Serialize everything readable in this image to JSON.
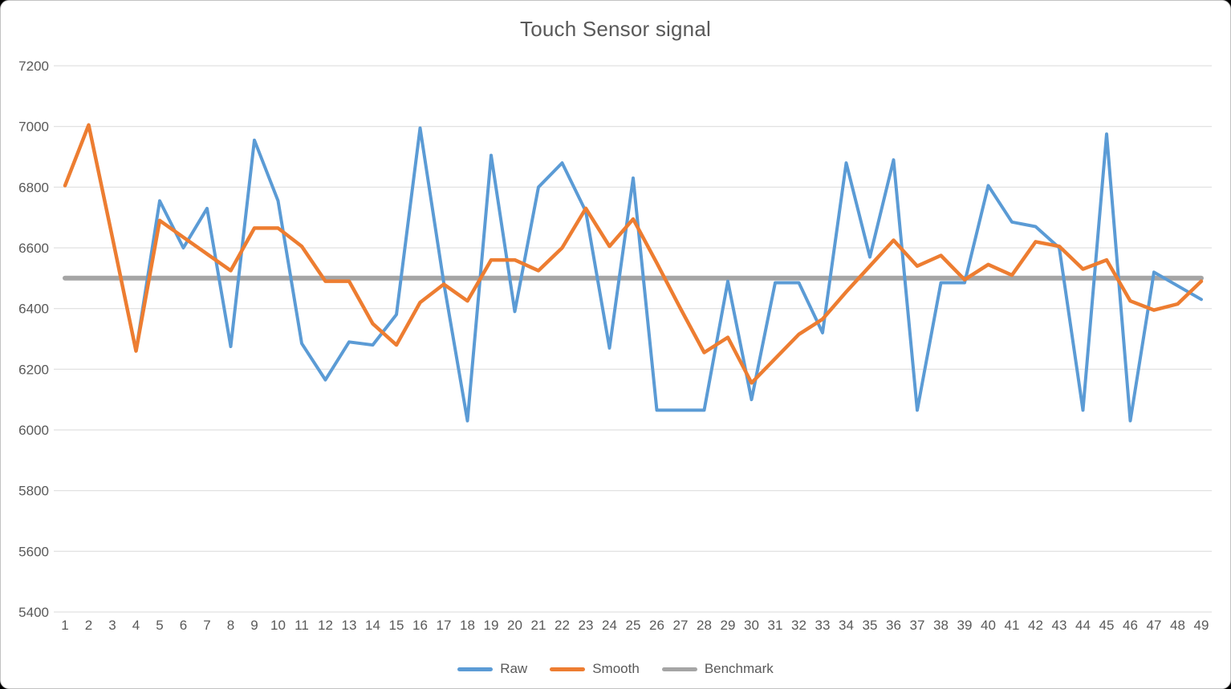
{
  "title": "Touch Sensor signal",
  "colors": {
    "raw": "#5B9BD5",
    "smooth": "#ED7D31",
    "benchmark": "#A5A5A5",
    "grid": "#D9D9D9",
    "axis_text": "#595959",
    "background": "#FFFFFF",
    "window_border": "#C2C2C2"
  },
  "legend": {
    "position": "bottom",
    "items": [
      {
        "label": "Raw"
      },
      {
        "label": "Smooth"
      },
      {
        "label": "Benchmark"
      }
    ]
  },
  "chart_data": {
    "type": "line",
    "title": "Touch Sensor signal",
    "xlabel": "",
    "ylabel": "",
    "ylim": [
      5400,
      7200
    ],
    "ytick_step": 200,
    "yticks": [
      7200,
      7000,
      6800,
      6600,
      6400,
      6200,
      6000,
      5800,
      5600,
      5400
    ],
    "grid": true,
    "legend_position": "bottom",
    "categories": [
      "1",
      "2",
      "3",
      "4",
      "5",
      "6",
      "7",
      "8",
      "9",
      "10",
      "11",
      "12",
      "13",
      "14",
      "15",
      "16",
      "17",
      "18",
      "19",
      "20",
      "21",
      "22",
      "23",
      "24",
      "25",
      "26",
      "27",
      "28",
      "29",
      "30",
      "31",
      "32",
      "33",
      "34",
      "35",
      "36",
      "37",
      "38",
      "39",
      "40",
      "41",
      "42",
      "43",
      "44",
      "45",
      "46",
      "47",
      "48",
      "49"
    ],
    "series": [
      {
        "name": "Raw",
        "color": "#5B9BD5",
        "width": 4,
        "z": 1,
        "values": [
          6805,
          7005,
          6635,
          6260,
          6755,
          6600,
          6730,
          6275,
          6955,
          6755,
          6285,
          6165,
          6290,
          6280,
          6380,
          6995,
          6485,
          6030,
          6905,
          6390,
          6800,
          6880,
          6720,
          6270,
          6830,
          6065,
          6065,
          6065,
          6490,
          6100,
          6485,
          6485,
          6320,
          6880,
          6570,
          6890,
          6065,
          6485,
          6485,
          6805,
          6685,
          6670,
          6600,
          6065,
          6975,
          6030,
          6520,
          6475,
          6430
        ]
      },
      {
        "name": "Smooth",
        "color": "#ED7D31",
        "width": 4.5,
        "z": 2,
        "values": [
          6805,
          7005,
          6635,
          6260,
          6690,
          6635,
          6580,
          6525,
          6665,
          6665,
          6605,
          6490,
          6490,
          6350,
          6280,
          6420,
          6480,
          6425,
          6560,
          6560,
          6525,
          6600,
          6730,
          6605,
          6695,
          6550,
          6400,
          6255,
          6305,
          6155,
          6235,
          6315,
          6365,
          6455,
          6540,
          6625,
          6540,
          6575,
          6495,
          6545,
          6510,
          6620,
          6605,
          6530,
          6560,
          6425,
          6395,
          6415,
          6490
        ]
      },
      {
        "name": "Benchmark",
        "color": "#A5A5A5",
        "width": 6,
        "z": 0,
        "constant": 6500
      }
    ]
  }
}
